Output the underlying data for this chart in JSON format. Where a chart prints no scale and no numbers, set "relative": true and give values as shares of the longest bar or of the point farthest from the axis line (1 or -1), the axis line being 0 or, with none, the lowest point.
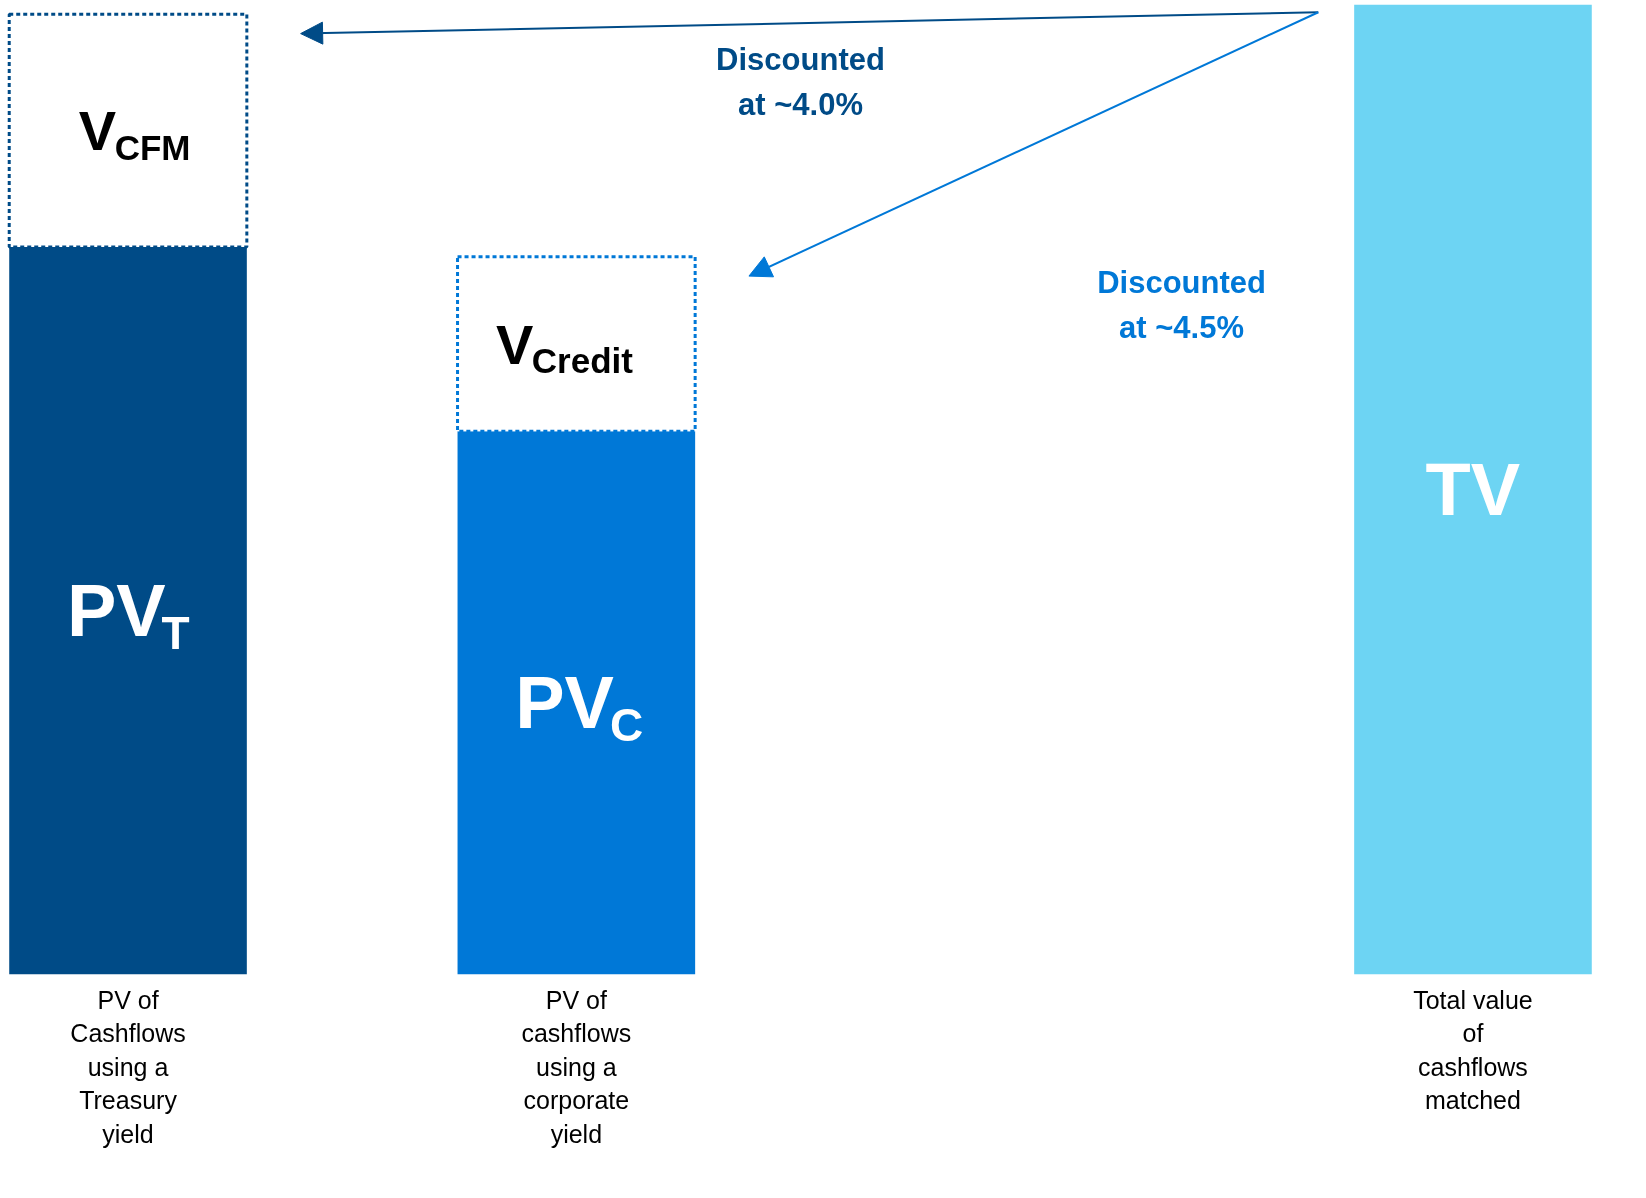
{
  "chart_data": {
    "type": "bar",
    "stacked": true,
    "relative": true,
    "categories": [
      "PV of Cashflows using a Treasury yield",
      "PV of cashflows using a corporate yield",
      null,
      "Total value of cashflows matched"
    ],
    "series": [
      {
        "colors": [
          "#004b87",
          "#0078d7",
          "#cccccc",
          "#6dd4f3"
        ],
        "values": [
          0.75,
          0.56,
          null,
          1
        ]
      },
      {
        "colors": [
          "#ffffff",
          "#ffffff",
          "#ffffff",
          "#ffffff"
        ],
        "line_style": "dashed",
        "values": [
          0.24,
          0.18,
          null,
          null
        ]
      }
    ],
    "annotations": [
      "PV$_{T}$",
      "V$_{CFM}$",
      "PV$_{C}$",
      "V$_{Credit}$",
      "TV",
      "Discounted at ~4.0%",
      "Discounted at ~4.5%"
    ]
  }
}
